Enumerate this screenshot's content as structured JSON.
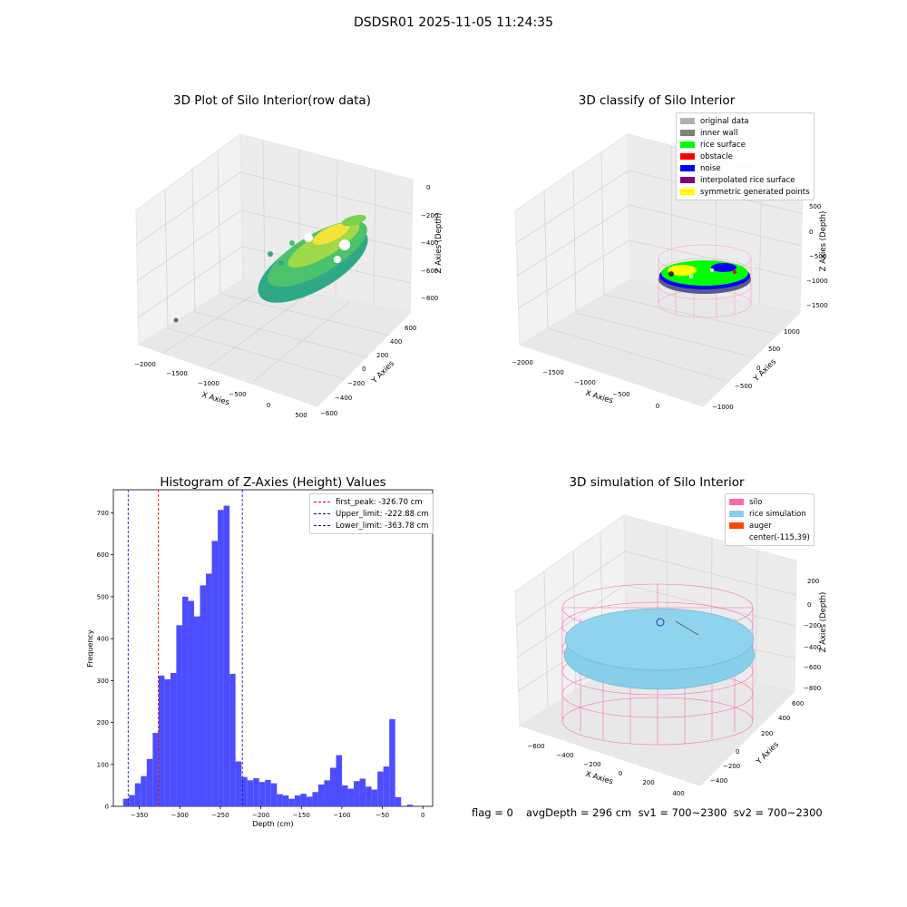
{
  "page_title": "DSDSR01 2025-11-05 11:24:35",
  "chart_data": [
    {
      "type": "scatter",
      "title": "3D Plot of Silo Interior(row data)",
      "xlabel": "X Axies",
      "ylabel": "Y Axies",
      "zlabel": "Z Axies (Depth)",
      "x_ticks": [
        "−2000",
        "−1500",
        "−1000",
        "−500",
        "0",
        "500"
      ],
      "y_ticks": [
        "−600",
        "−400",
        "−200",
        "0",
        "200",
        "400",
        "600"
      ],
      "z_ticks": [
        "0",
        "−200",
        "−400",
        "−600",
        "−800"
      ],
      "colormap": "viridis",
      "colors": {
        "low": "#35b779",
        "high": "#fde725",
        "outlier": "#8a4fa0"
      }
    },
    {
      "type": "scatter",
      "title": "3D classify of Silo Interior",
      "xlabel": "X Axies",
      "ylabel": "Y Axies",
      "zlabel": "Z Axies (Depth)",
      "x_ticks": [
        "−2000",
        "−1500",
        "−1000",
        "−500",
        "0"
      ],
      "y_ticks": [
        "−1000",
        "−500",
        "0",
        "500",
        "1000"
      ],
      "z_ticks": [
        "500",
        "0",
        "−500",
        "−1000",
        "−1500"
      ],
      "legend": [
        {
          "label": "original data",
          "color": "#b0b0b0"
        },
        {
          "label": "inner wall",
          "color": "#808080"
        },
        {
          "label": "rice surface",
          "color": "#00ff00"
        },
        {
          "label": "obstacle",
          "color": "#ff0000"
        },
        {
          "label": "noise",
          "color": "#0000ff"
        },
        {
          "label": "interpolated rice surface",
          "color": "#800080"
        },
        {
          "label": "symmetric generated points",
          "color": "#ffff00"
        }
      ],
      "wireframe_color": "#ff9ecf"
    },
    {
      "type": "bar",
      "title": "Histogram of Z-Axies (Height) Values",
      "xlabel": "Depth (cm)",
      "ylabel": "Frequency",
      "xlim": [
        -382,
        12
      ],
      "ylim": [
        0,
        755
      ],
      "bin_start": -370,
      "bin_width": 7.3,
      "values": [
        18,
        27,
        55,
        72,
        113,
        175,
        312,
        303,
        318,
        432,
        500,
        490,
        453,
        527,
        555,
        633,
        707,
        717,
        316,
        107,
        70,
        62,
        67,
        58,
        63,
        55,
        29,
        26,
        18,
        26,
        30,
        23,
        34,
        52,
        62,
        92,
        122,
        50,
        42,
        60,
        66,
        47,
        40,
        83,
        95,
        208,
        22,
        0,
        4
      ],
      "bar_color": "#4d4dff",
      "x_ticks": [
        -350,
        -300,
        -250,
        -200,
        -150,
        -100,
        -50,
        0
      ],
      "x_tick_labels": [
        "−350",
        "−300",
        "−250",
        "−200",
        "−150",
        "−100",
        "−50",
        "0"
      ],
      "y_ticks": [
        0,
        100,
        200,
        300,
        400,
        500,
        600,
        700
      ],
      "y_tick_labels": [
        "0",
        "100",
        "200",
        "300",
        "400",
        "500",
        "600",
        "700"
      ],
      "lines": [
        {
          "label": "first_peak: -326.70 cm",
          "x": -326.7,
          "color": "#e60000"
        },
        {
          "label": "Upper_limit: -222.88 cm",
          "x": -222.88,
          "color": "#0000cc"
        },
        {
          "label": "Lower_limit: -363.78 cm",
          "x": -363.78,
          "color": "#0000cc"
        }
      ]
    },
    {
      "type": "scatter",
      "title": "3D simulation of Silo Interior",
      "xlabel": "X Axies",
      "ylabel": "Y Axies",
      "zlabel": "Z Axies (Depth)",
      "x_ticks": [
        "−600",
        "−400",
        "−200",
        "0",
        "200",
        "400"
      ],
      "y_ticks": [
        "−400",
        "−200",
        "0",
        "200",
        "400",
        "600"
      ],
      "z_ticks": [
        "200",
        "0",
        "−200",
        "−400",
        "−600",
        "−800"
      ],
      "legend": [
        {
          "label": "silo",
          "color": "#ff69b4"
        },
        {
          "label": "rice simulation",
          "color": "#87ceeb"
        },
        {
          "label": "auger",
          "color": "#ff4500"
        },
        {
          "label": "center(-115,39)",
          "color": ""
        }
      ]
    }
  ],
  "footer": {
    "flag": "flag = 0",
    "avg_depth": "avgDepth = 296 cm  sv1 = 700~2300  sv2 = 700~2300"
  }
}
